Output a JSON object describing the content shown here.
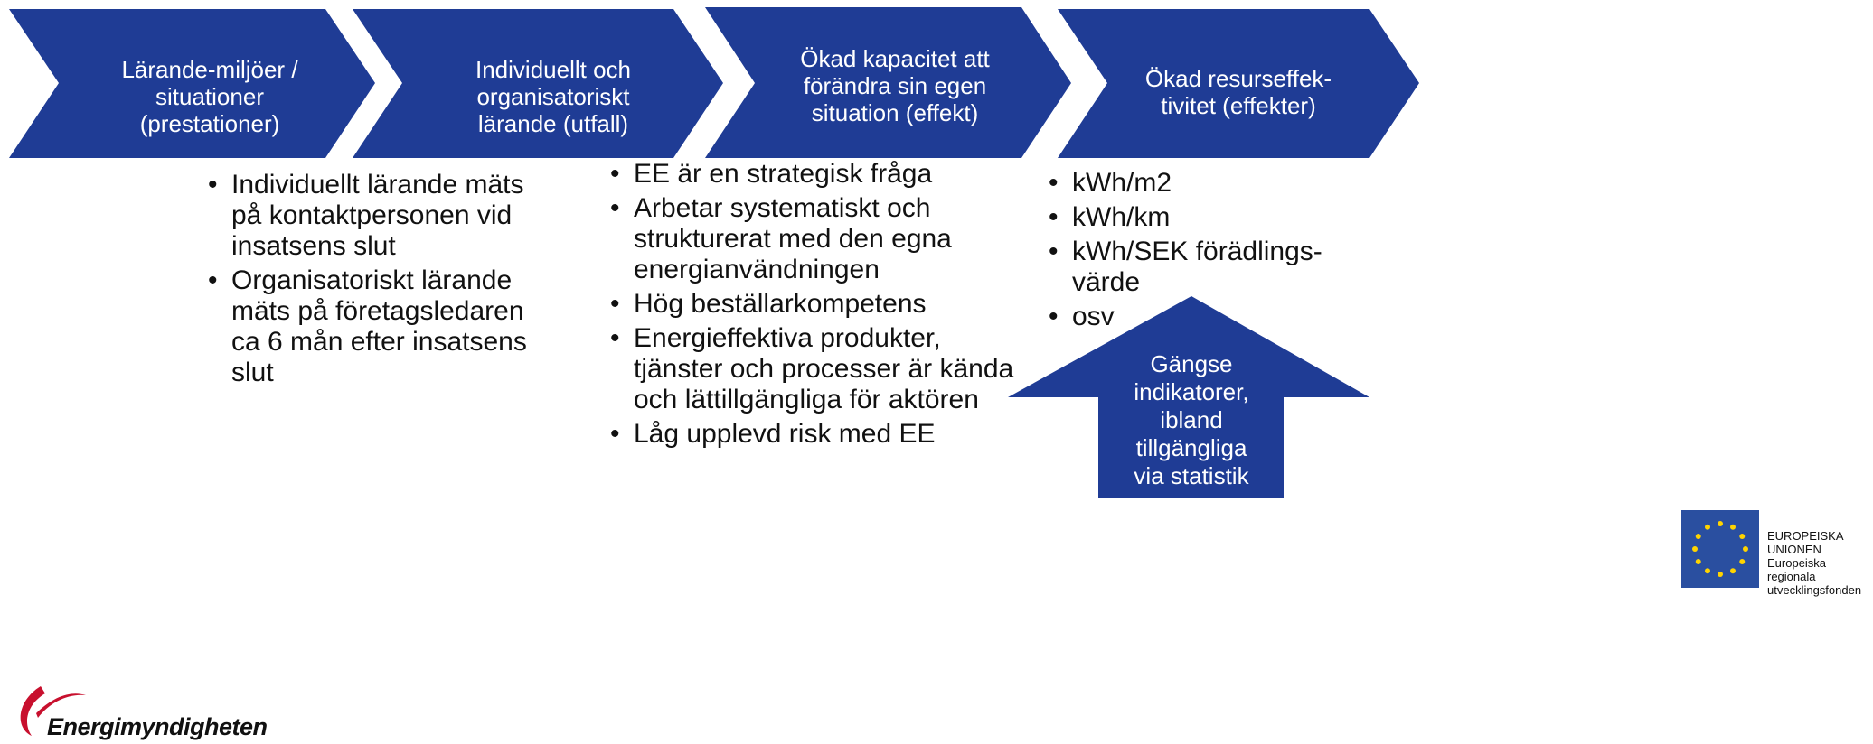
{
  "steps": [
    {
      "lines": [
        "Lärande-miljöer /",
        "situationer",
        "(prestationer)"
      ]
    },
    {
      "lines": [
        "Individuellt och",
        "organisatoriskt",
        "lärande (utfall)"
      ]
    },
    {
      "lines": [
        "Ökad kapacitet att",
        "förändra sin egen",
        "situation (effekt)"
      ]
    },
    {
      "lines": [
        "Ökad resurseffek-",
        "tivitet (effekter)"
      ]
    }
  ],
  "lists": [
    [
      "Individuellt lärande mäts på kontaktpersonen vid insatsens slut",
      "Organisatoriskt lärande mäts på företagsledaren ca 6 mån efter insatsens slut"
    ],
    [
      "EE är en strategisk fråga",
      "Arbetar systematiskt och strukturerat med den egna energianvändningen",
      "Hög beställarkompetens",
      "Energieffektiva produkter, tjänster och processer är kända och lättillgängliga för aktören",
      "Låg upplevd risk med EE"
    ],
    [
      "kWh/m2",
      "kWh/km",
      "kWh/SEK förädlings-värde",
      "osv"
    ]
  ],
  "arrow": {
    "lines": [
      "Gängse",
      "indikatorer,",
      "ibland",
      "tillgängliga",
      "via statistik"
    ]
  },
  "logos": {
    "energimyndigheten": "Energimyndigheten",
    "eu": [
      "EUROPEISKA",
      "UNIONEN",
      "Europeiska",
      "regionala",
      "utvecklingsfonden"
    ]
  }
}
